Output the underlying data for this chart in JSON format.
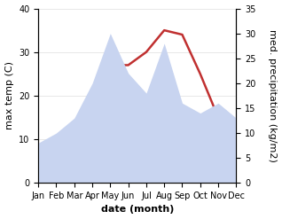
{
  "months": [
    "Jan",
    "Feb",
    "Mar",
    "Apr",
    "May",
    "Jun",
    "Jul",
    "Aug",
    "Sep",
    "Oct",
    "Nov",
    "Dec"
  ],
  "temp": [
    2,
    5,
    12,
    21,
    27,
    27,
    30,
    35,
    34,
    25,
    15,
    8
  ],
  "precip": [
    8,
    10,
    13,
    20,
    30,
    22,
    18,
    28,
    16,
    14,
    16,
    13
  ],
  "temp_color": "#c03030",
  "precip_fill_color": "#c8d4f0",
  "temp_ylim": [
    0,
    40
  ],
  "precip_ylim": [
    0,
    35
  ],
  "temp_yticks": [
    0,
    10,
    20,
    30,
    40
  ],
  "precip_yticks": [
    0,
    5,
    10,
    15,
    20,
    25,
    30,
    35
  ],
  "xlabel": "date (month)",
  "ylabel_left": "max temp (C)",
  "ylabel_right": "med. precipitation (kg/m2)",
  "tick_label_fontsize": 7,
  "axis_label_fontsize": 8
}
